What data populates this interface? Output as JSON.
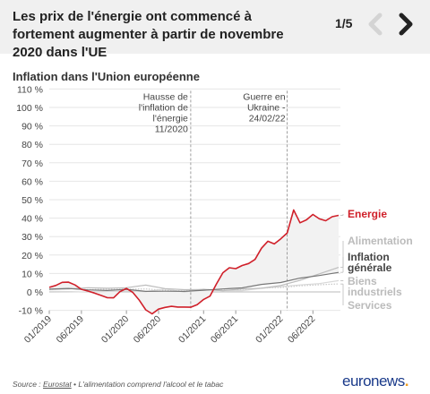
{
  "header": {
    "title": "Les prix de l'énergie ont commencé à fortement augmenter à partir de novembre 2020 dans l'UE",
    "pager": "1/5"
  },
  "subtitle": "Inflation dans l'Union européenne",
  "footer": {
    "source_prefix": "Source : ",
    "source_link": "Eurostat",
    "source_note": " • L'alimentation comprend l'alcool et le tabac",
    "logo_main": "euronews",
    "logo_dot": "."
  },
  "chart_data": {
    "type": "line",
    "ylim": [
      -10,
      110
    ],
    "y_ticks": [
      -10,
      0,
      10,
      20,
      30,
      40,
      50,
      60,
      70,
      80,
      90,
      100,
      110
    ],
    "y_tick_labels": [
      "-10 %",
      "0 %",
      "10 %",
      "20 %",
      "30 %",
      "40 %",
      "50 %",
      "60 %",
      "70 %",
      "80 %",
      "90 %",
      "100 %",
      "110 %"
    ],
    "x_ticks": [
      "01/2019",
      "06/2019",
      "01/2020",
      "06/2020",
      "01/2021",
      "06/2021",
      "01/2022",
      "06/2022"
    ],
    "grid": true,
    "annotations": [
      {
        "date": "2020-11",
        "label_lines": [
          "Hausse de",
          "l'inflation de",
          "l'énergie",
          "11/2020"
        ]
      },
      {
        "date": "2022-02",
        "label_lines": [
          "Guerre en",
          "Ukraine -",
          "24/02/22"
        ]
      }
    ],
    "series": [
      {
        "name": "Energie",
        "color": "#d0202a",
        "x": [
          "2019-01",
          "2019-02",
          "2019-03",
          "2019-04",
          "2019-05",
          "2019-06",
          "2019-07",
          "2019-08",
          "2019-09",
          "2019-10",
          "2019-11",
          "2019-12",
          "2020-01",
          "2020-02",
          "2020-03",
          "2020-04",
          "2020-05",
          "2020-06",
          "2020-07",
          "2020-08",
          "2020-09",
          "2020-10",
          "2020-11",
          "2020-12",
          "2021-01",
          "2021-02",
          "2021-03",
          "2021-04",
          "2021-05",
          "2021-06",
          "2021-07",
          "2021-08",
          "2021-09",
          "2021-10",
          "2021-11",
          "2021-12",
          "2022-01",
          "2022-02",
          "2022-03",
          "2022-04",
          "2022-05",
          "2022-06",
          "2022-07",
          "2022-08",
          "2022-09",
          "2022-10"
        ],
        "values": [
          2.5,
          3.5,
          5.2,
          5.3,
          3.8,
          1.4,
          0.5,
          -0.6,
          -1.8,
          -3.1,
          -3.2,
          0.2,
          1.9,
          -0.3,
          -4.5,
          -9.7,
          -11.9,
          -9.3,
          -8.4,
          -7.8,
          -8.2,
          -8.2,
          -8.3,
          -6.9,
          -4.1,
          -2.3,
          4.3,
          10.4,
          13.1,
          12.6,
          14.3,
          15.4,
          17.6,
          23.7,
          27.5,
          26.0,
          28.8,
          32.0,
          44.4,
          37.5,
          39.1,
          42.0,
          39.6,
          38.6,
          40.8,
          41.5
        ]
      },
      {
        "name": "Alimentation",
        "color": "#bdbdbd",
        "x": [
          "2019-01",
          "2019-04",
          "2019-07",
          "2019-10",
          "2020-01",
          "2020-04",
          "2020-07",
          "2020-10",
          "2021-01",
          "2021-04",
          "2021-07",
          "2021-10",
          "2022-01",
          "2022-04",
          "2022-07",
          "2022-10"
        ],
        "values": [
          1.4,
          1.6,
          2.3,
          2.0,
          2.3,
          3.7,
          1.8,
          1.2,
          1.3,
          0.7,
          1.6,
          2.0,
          3.5,
          6.3,
          9.8,
          13.3
        ]
      },
      {
        "name": "Inflation générale",
        "color": "#777777",
        "x": [
          "2019-01",
          "2019-04",
          "2019-07",
          "2019-10",
          "2020-01",
          "2020-04",
          "2020-07",
          "2020-10",
          "2021-01",
          "2021-04",
          "2021-07",
          "2021-10",
          "2022-01",
          "2022-04",
          "2022-07",
          "2022-10"
        ],
        "values": [
          1.5,
          1.9,
          1.1,
          0.8,
          1.4,
          0.3,
          0.4,
          0.3,
          0.9,
          1.6,
          2.2,
          4.1,
          5.1,
          7.5,
          8.9,
          10.6
        ]
      },
      {
        "name": "Biens industriels",
        "color": "#d8d8d8",
        "x": [
          "2019-01",
          "2019-04",
          "2019-07",
          "2019-10",
          "2020-01",
          "2020-04",
          "2020-07",
          "2020-10",
          "2021-01",
          "2021-04",
          "2021-07",
          "2021-10",
          "2022-01",
          "2022-04",
          "2022-07",
          "2022-10"
        ],
        "values": [
          0.3,
          0.2,
          -0.1,
          0.3,
          0.5,
          0.2,
          1.6,
          -0.1,
          1.5,
          0.7,
          0.7,
          2.0,
          2.9,
          3.8,
          4.5,
          6.1
        ]
      },
      {
        "name": "Services",
        "color": "#c8c8c8",
        "x": [
          "2019-01",
          "2019-04",
          "2019-07",
          "2019-10",
          "2020-01",
          "2020-04",
          "2020-07",
          "2020-10",
          "2021-01",
          "2021-04",
          "2021-07",
          "2021-10",
          "2022-01",
          "2022-04",
          "2022-07",
          "2022-10"
        ],
        "values": [
          1.3,
          1.9,
          1.2,
          1.5,
          1.5,
          1.6,
          0.9,
          0.5,
          1.4,
          0.9,
          0.9,
          2.1,
          2.4,
          3.3,
          3.9,
          4.3
        ]
      }
    ]
  }
}
